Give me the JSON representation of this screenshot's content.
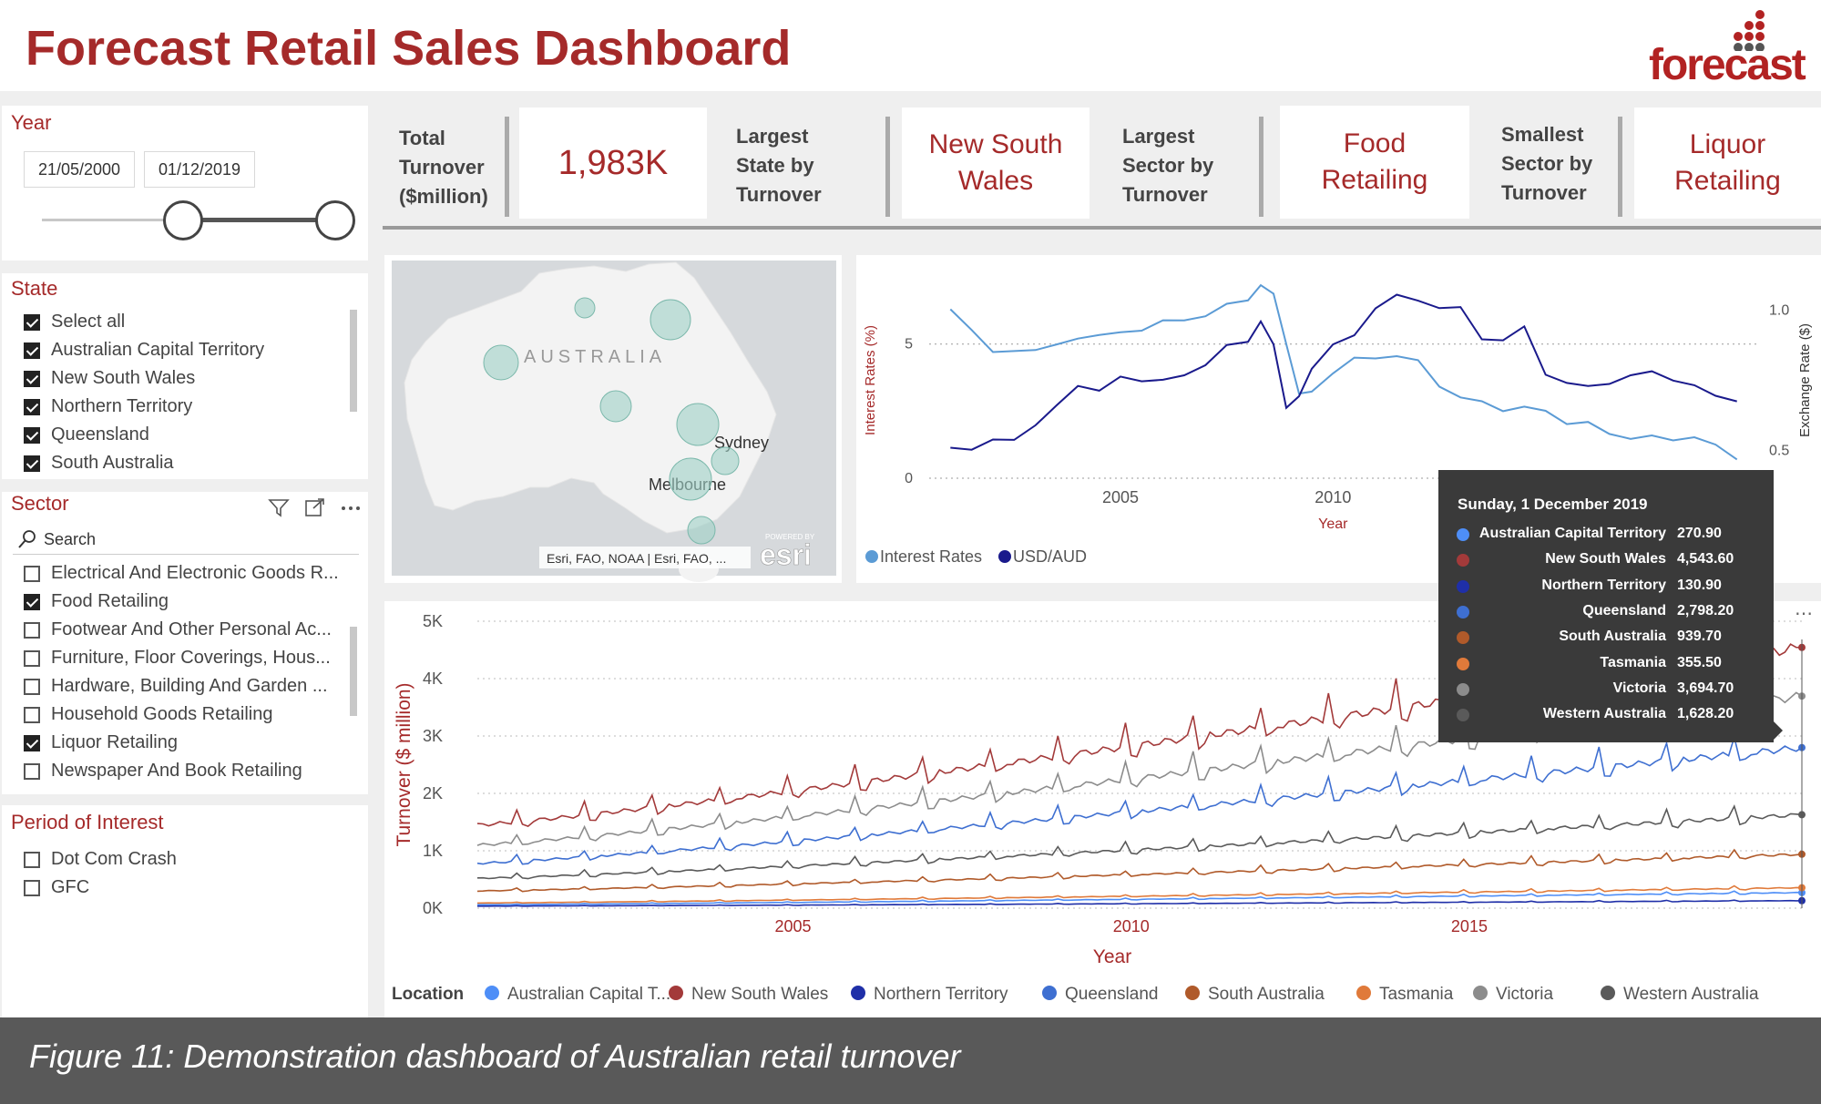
{
  "title": "Forecast Retail Sales Dashboard",
  "logo_text": "forecast",
  "year_slicer": {
    "title": "Year",
    "start": "21/05/2000",
    "end": "01/12/2019"
  },
  "state_slicer": {
    "title": "State",
    "items": [
      {
        "label": "Select all",
        "checked": true
      },
      {
        "label": "Australian Capital Territory",
        "checked": true
      },
      {
        "label": "New South Wales",
        "checked": true
      },
      {
        "label": "Northern Territory",
        "checked": true
      },
      {
        "label": "Queensland",
        "checked": true
      },
      {
        "label": "South Australia",
        "checked": true
      }
    ]
  },
  "sector_slicer": {
    "title": "Sector",
    "search_placeholder": "Search",
    "items": [
      {
        "label": "Electrical And Electronic Goods R...",
        "checked": false
      },
      {
        "label": "Food Retailing",
        "checked": true
      },
      {
        "label": "Footwear And Other Personal Ac...",
        "checked": false
      },
      {
        "label": "Furniture, Floor Coverings, Hous...",
        "checked": false
      },
      {
        "label": "Hardware, Building And Garden ...",
        "checked": false
      },
      {
        "label": "Household Goods Retailing",
        "checked": false
      },
      {
        "label": "Liquor Retailing",
        "checked": true
      },
      {
        "label": "Newspaper And Book Retailing",
        "checked": false
      }
    ]
  },
  "period_slicer": {
    "title": "Period of Interest",
    "items": [
      {
        "label": "Dot Com Crash",
        "checked": false
      },
      {
        "label": "GFC",
        "checked": false
      }
    ]
  },
  "kpis": [
    {
      "label_lines": [
        "Total",
        "Turnover",
        "($million)"
      ],
      "value_lines": [
        "1,983K"
      ]
    },
    {
      "label_lines": [
        "Largest",
        "State by",
        "Turnover"
      ],
      "value_lines": [
        "New South",
        "Wales"
      ]
    },
    {
      "label_lines": [
        "Largest",
        "Sector by",
        "Turnover"
      ],
      "value_lines": [
        "Food",
        "Retailing"
      ]
    },
    {
      "label_lines": [
        "Smallest",
        "Sector by",
        "Turnover"
      ],
      "value_lines": [
        "Liquor",
        "Retailing"
      ]
    }
  ],
  "map": {
    "country_label": "AUSTRALIA",
    "city_labels": [
      "Sydney",
      "Melbourne"
    ],
    "attribution": "Esri, FAO, NOAA | Esri, FAO, ...",
    "provider": "esri",
    "provider_small": "POWERED BY"
  },
  "chart_data": [
    {
      "type": "line",
      "xlabel": "Year",
      "ylabel": "Interest Rates (%)",
      "y2label": "Exchange Rate ($)",
      "x_ticks": [
        "2005",
        "2010"
      ],
      "y_ticks": [
        "0",
        "5"
      ],
      "y2_ticks": [
        "0.5",
        "1.0"
      ],
      "ylim": [
        0,
        7.3
      ],
      "y2lim": [
        0.4,
        1.1
      ],
      "legend_position": "bottom-left",
      "series": [
        {
          "name": "Interest Rates",
          "axis": "left",
          "color": "#5b9bd5",
          "x": [
            2001.0,
            2001.5,
            2002.0,
            2002.5,
            2003.0,
            2003.5,
            2004.0,
            2004.5,
            2005.0,
            2005.5,
            2006.0,
            2006.5,
            2007.0,
            2007.5,
            2008.0,
            2008.3,
            2008.6,
            2008.9,
            2009.2,
            2009.5,
            2010.0,
            2010.5,
            2011.0,
            2011.5,
            2012.0,
            2012.5,
            2013.0,
            2013.5,
            2014.0,
            2014.5,
            2015.0,
            2015.5,
            2016.0,
            2016.5,
            2017.0,
            2017.5,
            2018.0,
            2018.5,
            2019.0,
            2019.5
          ],
          "values": [
            6.3,
            5.6,
            4.6,
            4.8,
            4.8,
            4.9,
            5.3,
            5.3,
            5.4,
            5.6,
            5.8,
            5.9,
            6.1,
            6.4,
            6.7,
            7.2,
            6.8,
            5.1,
            3.1,
            3.2,
            4.0,
            4.4,
            4.5,
            4.6,
            4.3,
            3.5,
            3.0,
            2.8,
            2.6,
            2.6,
            2.5,
            2.1,
            2.0,
            1.7,
            1.5,
            1.5,
            1.5,
            1.5,
            1.2,
            0.8
          ]
        },
        {
          "name": "USD/AUD",
          "axis": "right",
          "color": "#1a1a8c",
          "x": [
            2001.0,
            2001.5,
            2002.0,
            2002.5,
            2003.0,
            2003.5,
            2004.0,
            2004.5,
            2005.0,
            2005.5,
            2006.0,
            2006.5,
            2007.0,
            2007.5,
            2008.0,
            2008.3,
            2008.6,
            2008.9,
            2009.2,
            2009.5,
            2010.0,
            2010.5,
            2011.0,
            2011.5,
            2012.0,
            2012.5,
            2013.0,
            2013.5,
            2014.0,
            2014.5,
            2015.0,
            2015.5,
            2016.0,
            2016.5,
            2017.0,
            2017.5,
            2018.0,
            2018.5,
            2019.0,
            2019.5
          ],
          "values": [
            0.52,
            0.5,
            0.53,
            0.55,
            0.58,
            0.66,
            0.74,
            0.7,
            0.77,
            0.75,
            0.74,
            0.78,
            0.8,
            0.87,
            0.9,
            0.95,
            0.88,
            0.66,
            0.68,
            0.8,
            0.88,
            0.9,
            1.02,
            1.05,
            1.03,
            1.02,
            1.0,
            0.9,
            0.9,
            0.93,
            0.78,
            0.74,
            0.72,
            0.75,
            0.76,
            0.78,
            0.76,
            0.72,
            0.7,
            0.68
          ]
        }
      ]
    },
    {
      "type": "line",
      "xlabel": "Year",
      "ylabel": "Turnover ($ million)",
      "x_ticks": [
        "2005",
        "2010",
        "2015"
      ],
      "y_ticks": [
        "0K",
        "1K",
        "2K",
        "3K",
        "4K",
        "5K"
      ],
      "ylim": [
        0,
        5000
      ],
      "legend_title": "Location",
      "legend_position": "bottom",
      "x_start": "2000-05",
      "x_end": "2019-12",
      "series": [
        {
          "name": "Australian Capital Territory",
          "legend_label": "Australian Capital T...",
          "color": "#4e8ef7",
          "start": 60,
          "end": 270.9
        },
        {
          "name": "New South Wales",
          "legend_label": "New South Wales",
          "color": "#a33a3a",
          "start": 1450,
          "end": 4543.6
        },
        {
          "name": "Northern Territory",
          "legend_label": "Northern Territory",
          "color": "#1f2fa8",
          "start": 35,
          "end": 130.9
        },
        {
          "name": "Queensland",
          "legend_label": "Queensland",
          "color": "#3e6fd1",
          "start": 780,
          "end": 2798.2
        },
        {
          "name": "South Australia",
          "legend_label": "South Australia",
          "color": "#b05a2a",
          "start": 300,
          "end": 939.7
        },
        {
          "name": "Tasmania",
          "legend_label": "Tasmania",
          "color": "#e07a3a",
          "start": 90,
          "end": 355.5
        },
        {
          "name": "Victoria",
          "legend_label": "Victoria",
          "color": "#8c8c8c",
          "start": 1100,
          "end": 3694.7
        },
        {
          "name": "Western Australia",
          "legend_label": "Western Australia",
          "color": "#5a5a5a",
          "start": 520,
          "end": 1628.2
        }
      ]
    }
  ],
  "tooltip": {
    "date": "Sunday, 1 December 2019",
    "rows": [
      {
        "name": "Australian Capital Territory",
        "value": "270.90",
        "color": "#4e8ef7"
      },
      {
        "name": "New South Wales",
        "value": "4,543.60",
        "color": "#a33a3a"
      },
      {
        "name": "Northern Territory",
        "value": "130.90",
        "color": "#1f2fa8"
      },
      {
        "name": "Queensland",
        "value": "2,798.20",
        "color": "#3e6fd1"
      },
      {
        "name": "South Australia",
        "value": "939.70",
        "color": "#b05a2a"
      },
      {
        "name": "Tasmania",
        "value": "355.50",
        "color": "#e07a3a"
      },
      {
        "name": "Victoria",
        "value": "3,694.70",
        "color": "#8c8c8c"
      },
      {
        "name": "Western Australia",
        "value": "1,628.20",
        "color": "#5a5a5a"
      }
    ]
  },
  "caption": "Figure 11: Demonstration dashboard of Australian retail turnover"
}
